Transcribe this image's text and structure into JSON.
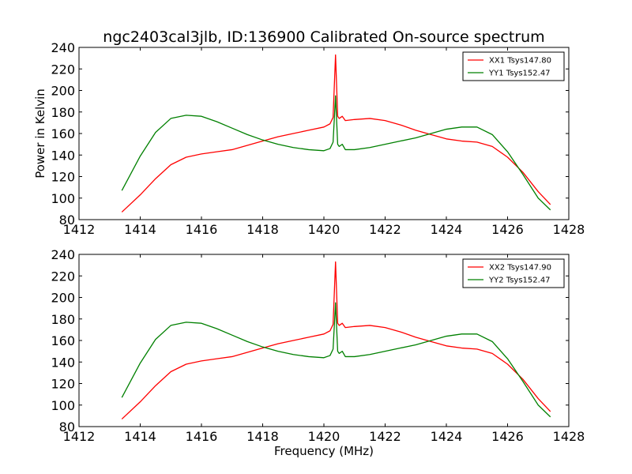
{
  "title": "ngc2403cal3jlb, ID:136900 Calibrated On-source spectrum",
  "xlabel": "Frequency (MHz)",
  "ylabel": "Power in Kelvin",
  "chart_data": [
    {
      "type": "line",
      "xlim": [
        1412,
        1428
      ],
      "ylim": [
        80,
        240
      ],
      "xticks": [
        1412,
        1414,
        1416,
        1418,
        1420,
        1422,
        1424,
        1426,
        1428
      ],
      "yticks": [
        80,
        100,
        120,
        140,
        160,
        180,
        200,
        220,
        240
      ],
      "legend_position": "top-right",
      "series": [
        {
          "name": "XX1 Tsys147.80",
          "color": "#ff0000",
          "x": [
            1413.4,
            1414.0,
            1414.5,
            1415.0,
            1415.5,
            1416.0,
            1416.5,
            1417.0,
            1417.5,
            1418.0,
            1418.5,
            1419.0,
            1419.5,
            1420.0,
            1420.2,
            1420.3,
            1420.38,
            1420.45,
            1420.5,
            1420.6,
            1420.7,
            1421.0,
            1421.5,
            1422.0,
            1422.5,
            1423.0,
            1423.5,
            1424.0,
            1424.5,
            1425.0,
            1425.5,
            1426.0,
            1426.5,
            1427.0,
            1427.4
          ],
          "y": [
            87,
            103,
            118,
            131,
            138,
            141,
            143,
            145,
            149,
            153,
            157,
            160,
            163,
            166,
            169,
            175,
            233,
            176,
            174,
            176,
            172,
            173,
            174,
            172,
            168,
            163,
            159,
            155,
            153,
            152,
            148,
            138,
            124,
            106,
            94
          ]
        },
        {
          "name": "YY1 Tsys152.47",
          "color": "#008000",
          "x": [
            1413.4,
            1414.0,
            1414.5,
            1415.0,
            1415.5,
            1416.0,
            1416.5,
            1417.0,
            1417.5,
            1418.0,
            1418.5,
            1419.0,
            1419.5,
            1420.0,
            1420.2,
            1420.3,
            1420.38,
            1420.45,
            1420.5,
            1420.6,
            1420.7,
            1421.0,
            1421.5,
            1422.0,
            1422.5,
            1423.0,
            1423.5,
            1424.0,
            1424.5,
            1425.0,
            1425.5,
            1426.0,
            1426.5,
            1427.0,
            1427.4
          ],
          "y": [
            107,
            139,
            161,
            174,
            177,
            176,
            171,
            165,
            159,
            154,
            150,
            147,
            145,
            144,
            146,
            152,
            195,
            150,
            148,
            150,
            145,
            145,
            147,
            150,
            153,
            156,
            160,
            164,
            166,
            166,
            159,
            143,
            122,
            100,
            89
          ]
        }
      ]
    },
    {
      "type": "line",
      "xlim": [
        1412,
        1428
      ],
      "ylim": [
        80,
        240
      ],
      "xticks": [
        1412,
        1414,
        1416,
        1418,
        1420,
        1422,
        1424,
        1426,
        1428
      ],
      "yticks": [
        80,
        100,
        120,
        140,
        160,
        180,
        200,
        220,
        240
      ],
      "legend_position": "top-right",
      "series": [
        {
          "name": "XX2 Tsys147.90",
          "color": "#ff0000",
          "x": [
            1413.4,
            1414.0,
            1414.5,
            1415.0,
            1415.5,
            1416.0,
            1416.5,
            1417.0,
            1417.5,
            1418.0,
            1418.5,
            1419.0,
            1419.5,
            1420.0,
            1420.2,
            1420.3,
            1420.38,
            1420.45,
            1420.5,
            1420.6,
            1420.7,
            1421.0,
            1421.5,
            1422.0,
            1422.5,
            1423.0,
            1423.5,
            1424.0,
            1424.5,
            1425.0,
            1425.5,
            1426.0,
            1426.5,
            1427.0,
            1427.4
          ],
          "y": [
            87,
            103,
            118,
            131,
            138,
            141,
            143,
            145,
            149,
            153,
            157,
            160,
            163,
            166,
            169,
            175,
            233,
            176,
            174,
            176,
            172,
            173,
            174,
            172,
            168,
            163,
            159,
            155,
            153,
            152,
            148,
            138,
            124,
            106,
            94
          ]
        },
        {
          "name": "YY2 Tsys152.47",
          "color": "#008000",
          "x": [
            1413.4,
            1414.0,
            1414.5,
            1415.0,
            1415.5,
            1416.0,
            1416.5,
            1417.0,
            1417.5,
            1418.0,
            1418.5,
            1419.0,
            1419.5,
            1420.0,
            1420.2,
            1420.3,
            1420.38,
            1420.45,
            1420.5,
            1420.6,
            1420.7,
            1421.0,
            1421.5,
            1422.0,
            1422.5,
            1423.0,
            1423.5,
            1424.0,
            1424.5,
            1425.0,
            1425.5,
            1426.0,
            1426.5,
            1427.0,
            1427.4
          ],
          "y": [
            107,
            139,
            161,
            174,
            177,
            176,
            171,
            165,
            159,
            154,
            150,
            147,
            145,
            144,
            146,
            152,
            195,
            150,
            148,
            150,
            145,
            145,
            147,
            150,
            153,
            156,
            160,
            164,
            166,
            166,
            159,
            143,
            122,
            100,
            89
          ]
        }
      ]
    }
  ]
}
